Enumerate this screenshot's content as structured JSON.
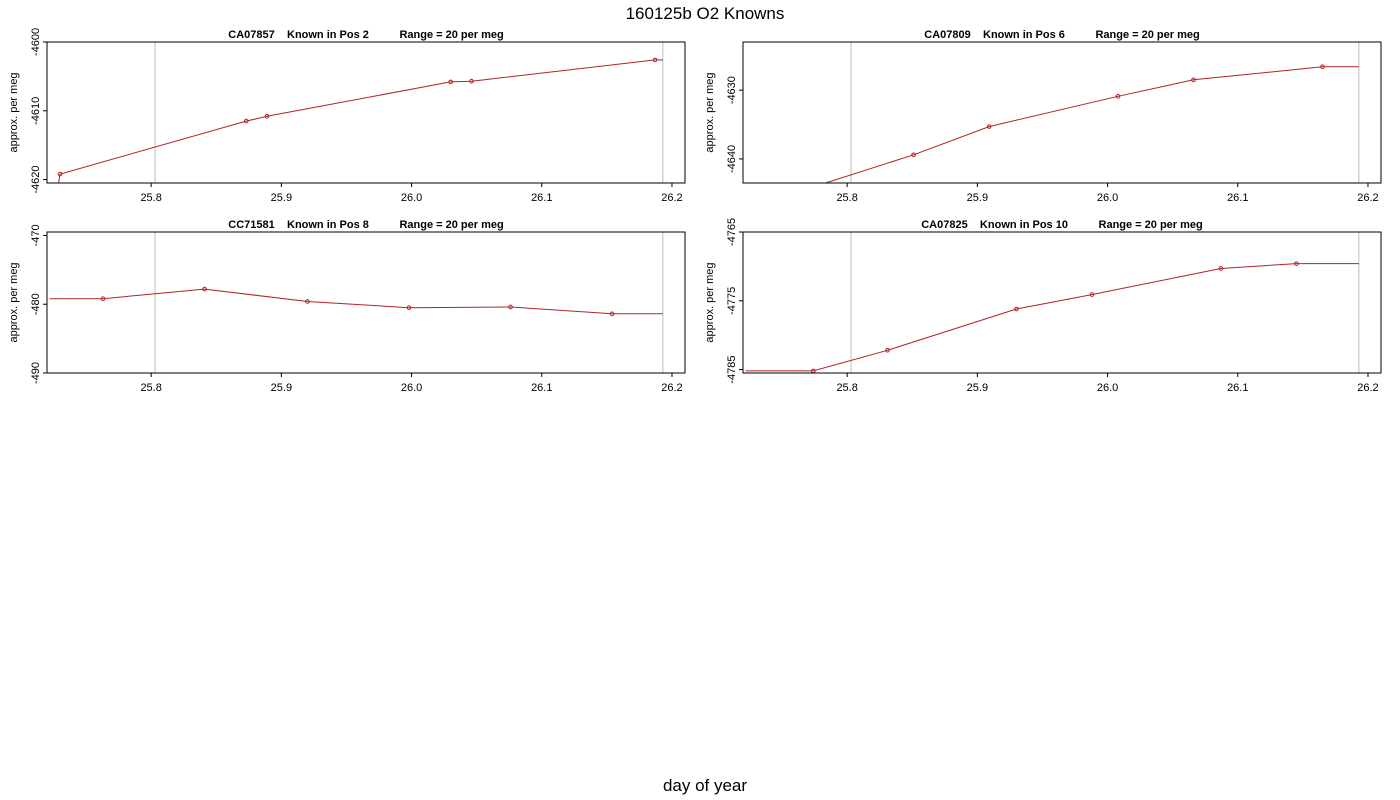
{
  "figure": {
    "title": "160125b   O2 Knowns",
    "xlabel": "day of year"
  },
  "colors": {
    "series": "#b22222",
    "vline": "#bdbdbd",
    "axis": "#000000"
  },
  "chart_data": [
    {
      "type": "line",
      "panel_title": "CA07857    Known in Pos 2          Range = 20 per meg",
      "ylabel": "approx. per meg",
      "xlim": [
        25.72,
        26.21
      ],
      "ylim": [
        -4620.5,
        -4600
      ],
      "xticks": [
        "25.8",
        "25.9",
        "26.0",
        "26.1",
        "26.2"
      ],
      "xtick_values": [
        25.8,
        25.9,
        26.0,
        26.1,
        26.2
      ],
      "yticks": [
        "-4620",
        "-4610",
        "-4600"
      ],
      "ytick_values": [
        -4620,
        -4610,
        -4600
      ],
      "vlines": [
        25.803,
        26.193
      ],
      "x": [
        25.728,
        25.73,
        25.873,
        25.889,
        26.03,
        26.046,
        26.187,
        26.193
      ],
      "y": [
        -4621.5,
        -4619.2,
        -4611.5,
        -4610.8,
        -4605.8,
        -4605.7,
        -4602.6,
        -4602.6
      ],
      "markers": [
        false,
        true,
        true,
        true,
        true,
        true,
        true,
        false
      ]
    },
    {
      "type": "line",
      "panel_title": "CA07809    Known in Pos 6          Range = 20 per meg",
      "ylabel": "approx. per meg",
      "xlim": [
        25.72,
        26.21
      ],
      "ylim": [
        -4643.5,
        -4623
      ],
      "xticks": [
        "25.8",
        "25.9",
        "26.0",
        "26.1",
        "26.2"
      ],
      "xtick_values": [
        25.8,
        25.9,
        26.0,
        26.1,
        26.2
      ],
      "yticks": [
        "-4640",
        "-4630"
      ],
      "ytick_values": [
        -4640,
        -4630
      ],
      "vlines": [
        25.803,
        26.193
      ],
      "x": [
        25.78,
        25.851,
        25.909,
        26.008,
        26.066,
        26.165,
        26.193
      ],
      "y": [
        -4643.7,
        -4639.4,
        -4635.3,
        -4630.9,
        -4628.5,
        -4626.6,
        -4626.6
      ],
      "markers": [
        false,
        true,
        true,
        true,
        true,
        true,
        false
      ]
    },
    {
      "type": "line",
      "panel_title": "CC71581    Known in Pos 8          Range = 20 per meg",
      "ylabel": "approx. per meg",
      "xlim": [
        25.72,
        26.21
      ],
      "ylim": [
        -490,
        -469.5
      ],
      "xticks": [
        "25.8",
        "25.9",
        "26.0",
        "26.1",
        "26.2"
      ],
      "xtick_values": [
        25.8,
        25.9,
        26.0,
        26.1,
        26.2
      ],
      "yticks": [
        "-490",
        "-480",
        "-470"
      ],
      "ytick_values": [
        -490,
        -480,
        -470
      ],
      "vlines": [
        25.803,
        26.193
      ],
      "x": [
        25.722,
        25.763,
        25.841,
        25.92,
        25.998,
        26.076,
        26.154,
        26.193
      ],
      "y": [
        -479.2,
        -479.2,
        -477.8,
        -479.6,
        -480.5,
        -480.4,
        -481.4,
        -481.4
      ],
      "markers": [
        false,
        true,
        true,
        true,
        true,
        true,
        true,
        false
      ]
    },
    {
      "type": "line",
      "panel_title": "CA07825    Known in Pos 10          Range = 20 per meg",
      "ylabel": "approx. per meg",
      "xlim": [
        25.72,
        26.21
      ],
      "ylim": [
        -4785.5,
        -4765
      ],
      "xticks": [
        "25.8",
        "25.9",
        "26.0",
        "26.1",
        "26.2"
      ],
      "xtick_values": [
        25.8,
        25.9,
        26.0,
        26.1,
        26.2
      ],
      "yticks": [
        "-4785",
        "-4775",
        "-4765"
      ],
      "ytick_values": [
        -4785,
        -4775,
        -4765
      ],
      "vlines": [
        25.803,
        26.193
      ],
      "x": [
        25.722,
        25.774,
        25.831,
        25.93,
        25.988,
        26.087,
        26.145,
        26.193
      ],
      "y": [
        -4785.2,
        -4785.2,
        -4782.2,
        -4776.2,
        -4774.1,
        -4770.3,
        -4769.6,
        -4769.6
      ],
      "markers": [
        false,
        true,
        true,
        true,
        true,
        true,
        true,
        false
      ]
    }
  ]
}
